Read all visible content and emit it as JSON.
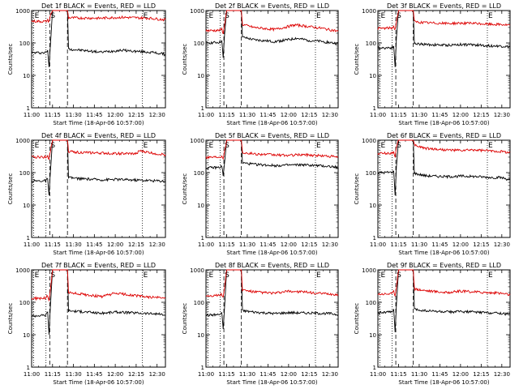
{
  "layout": "3x3 panel grid",
  "shared": {
    "x_tick_labels": [
      "11:00",
      "11:15",
      "11:30",
      "11:45",
      "12:00",
      "12:15",
      "12:30"
    ],
    "x_tick_minutes_after_1100": [
      0,
      15,
      30,
      45,
      60,
      75,
      90
    ],
    "xlim_minutes_after_1100": [
      0,
      96
    ],
    "xlabel": "Start Time (18-Apr-06 10:57:00)",
    "ylabel": "Counts/sec",
    "y_scale": "log",
    "ylim": [
      1,
      1000
    ],
    "y_tick_labels": [
      "1",
      "10",
      "100",
      "1000"
    ],
    "y_tick_values": [
      1,
      10,
      100,
      1000
    ],
    "series_colors": {
      "events": "#000000",
      "lld": "#dd0000"
    },
    "markers": [
      {
        "label": "E",
        "minutes_after_1100": 1.5,
        "style": "dotted"
      },
      {
        "label": "S",
        "minutes_after_1100": 13,
        "style": "dashed"
      },
      {
        "label": "",
        "minutes_after_1100": 10.3,
        "style": "dotted"
      },
      {
        "label": "",
        "minutes_after_1100": 25.7,
        "style": "dashed"
      },
      {
        "label": "E",
        "minutes_after_1100": 79.5,
        "style": "dotted"
      }
    ]
  },
  "chart_data": [
    {
      "type": "line",
      "title": "Det 1f BLACK = Events, RED = LLD",
      "series": [
        {
          "name": "Events",
          "x": [
            0,
            10,
            11.5,
            12.5,
            13.5,
            15,
            25.7,
            26.5,
            35,
            50,
            55,
            65,
            75,
            85,
            96
          ],
          "y": [
            50,
            50,
            60,
            18,
            90,
            1000,
            1000,
            65,
            60,
            52,
            55,
            60,
            55,
            52,
            45
          ]
        },
        {
          "name": "LLD",
          "x": [
            0,
            10,
            11.5,
            12.5,
            13.5,
            15,
            25.7,
            26.5,
            35,
            50,
            55,
            65,
            75,
            85,
            96
          ],
          "y": [
            470,
            460,
            500,
            460,
            700,
            1000,
            1000,
            600,
            590,
            580,
            600,
            620,
            600,
            580,
            520
          ]
        }
      ]
    },
    {
      "type": "line",
      "title": "Det 2f BLACK = Events, RED = LLD",
      "series": [
        {
          "name": "Events",
          "x": [
            0,
            10,
            11.5,
            12.5,
            13.5,
            15,
            25.7,
            26.5,
            35,
            50,
            62,
            65,
            75,
            85,
            96
          ],
          "y": [
            100,
            105,
            120,
            35,
            180,
            1000,
            1000,
            150,
            125,
            110,
            130,
            140,
            120,
            110,
            95
          ]
        },
        {
          "name": "LLD",
          "x": [
            0,
            10,
            11.5,
            12.5,
            13.5,
            15,
            25.7,
            26.5,
            35,
            50,
            62,
            65,
            75,
            85,
            96
          ],
          "y": [
            240,
            245,
            270,
            200,
            350,
            1000,
            1000,
            370,
            300,
            260,
            340,
            360,
            320,
            280,
            230
          ]
        }
      ]
    },
    {
      "type": "line",
      "title": "Det 3f BLACK = Events, RED = LLD",
      "series": [
        {
          "name": "Events",
          "x": [
            0,
            10,
            11.5,
            12.5,
            13.5,
            15,
            25.7,
            26.5,
            35,
            50,
            60,
            70,
            80,
            90,
            96
          ],
          "y": [
            70,
            72,
            80,
            18,
            150,
            1000,
            1000,
            95,
            90,
            85,
            90,
            88,
            82,
            80,
            75
          ]
        },
        {
          "name": "LLD",
          "x": [
            0,
            10,
            11.5,
            12.5,
            13.5,
            15,
            25.7,
            26.5,
            35,
            50,
            60,
            70,
            80,
            90,
            96
          ],
          "y": [
            280,
            290,
            320,
            250,
            480,
            1000,
            1000,
            450,
            420,
            400,
            410,
            400,
            380,
            370,
            350
          ]
        }
      ]
    },
    {
      "type": "line",
      "title": "Det 4f BLACK = Events, RED = LLD",
      "series": [
        {
          "name": "Events",
          "x": [
            0,
            10,
            11.5,
            12.5,
            13.5,
            15,
            25.7,
            26.5,
            35,
            50,
            60,
            70,
            80,
            90,
            96
          ],
          "y": [
            55,
            56,
            65,
            20,
            110,
            1000,
            1000,
            70,
            65,
            60,
            62,
            60,
            58,
            56,
            55
          ]
        },
        {
          "name": "LLD",
          "x": [
            0,
            10,
            11.5,
            12.5,
            13.5,
            15,
            25.7,
            26.5,
            35,
            50,
            60,
            75,
            77,
            90,
            96
          ],
          "y": [
            300,
            305,
            330,
            260,
            480,
            1000,
            1000,
            450,
            420,
            400,
            390,
            380,
            470,
            380,
            360
          ]
        }
      ]
    },
    {
      "type": "line",
      "title": "Det 5f BLACK = Events, RED = LLD",
      "series": [
        {
          "name": "Events",
          "x": [
            0,
            10,
            11.5,
            12.5,
            13.5,
            15,
            25.7,
            26.5,
            35,
            50,
            60,
            70,
            80,
            90,
            96
          ],
          "y": [
            140,
            145,
            160,
            80,
            200,
            1000,
            1000,
            200,
            180,
            165,
            170,
            175,
            165,
            155,
            145
          ]
        },
        {
          "name": "LLD",
          "x": [
            0,
            10,
            11.5,
            12.5,
            13.5,
            15,
            25.7,
            26.5,
            35,
            50,
            60,
            70,
            80,
            90,
            96
          ],
          "y": [
            300,
            310,
            330,
            290,
            450,
            1000,
            1000,
            420,
            380,
            350,
            340,
            360,
            340,
            320,
            300
          ]
        }
      ]
    },
    {
      "type": "line",
      "title": "Det 6f BLACK = Events, RED = LLD",
      "series": [
        {
          "name": "Events",
          "x": [
            0,
            10,
            11.5,
            12.5,
            13.5,
            15,
            25.7,
            26.5,
            35,
            50,
            60,
            70,
            80,
            90,
            96
          ],
          "y": [
            100,
            102,
            110,
            20,
            160,
            1000,
            1000,
            95,
            80,
            75,
            78,
            76,
            72,
            70,
            60
          ]
        },
        {
          "name": "LLD",
          "x": [
            0,
            10,
            11.5,
            12.5,
            13.5,
            15,
            25.7,
            26.5,
            35,
            50,
            60,
            70,
            80,
            90,
            96
          ],
          "y": [
            390,
            400,
            450,
            300,
            600,
            1000,
            1000,
            700,
            560,
            500,
            480,
            500,
            470,
            450,
            420
          ]
        }
      ]
    },
    {
      "type": "line",
      "title": "Det 7f BLACK = Events, RED = LLD",
      "series": [
        {
          "name": "Events",
          "x": [
            0,
            10,
            11.5,
            12.5,
            13.5,
            15,
            25.7,
            26.5,
            35,
            50,
            60,
            70,
            80,
            90,
            96
          ],
          "y": [
            38,
            40,
            50,
            10,
            80,
            1000,
            1000,
            55,
            52,
            46,
            50,
            48,
            46,
            44,
            40
          ]
        },
        {
          "name": "LLD",
          "x": [
            0,
            10,
            11.5,
            12.5,
            13.5,
            15,
            25.7,
            26.5,
            35,
            50,
            60,
            70,
            80,
            90,
            96
          ],
          "y": [
            130,
            135,
            160,
            120,
            250,
            1000,
            1000,
            200,
            180,
            150,
            190,
            170,
            150,
            140,
            135
          ]
        }
      ]
    },
    {
      "type": "line",
      "title": "Det 8f BLACK = Events, RED = LLD",
      "series": [
        {
          "name": "Events",
          "x": [
            0,
            10,
            11.5,
            12.5,
            13.5,
            15,
            25.7,
            26.5,
            35,
            50,
            60,
            70,
            80,
            90,
            96
          ],
          "y": [
            40,
            42,
            48,
            15,
            70,
            1000,
            1000,
            55,
            50,
            45,
            48,
            47,
            46,
            45,
            42
          ]
        },
        {
          "name": "LLD",
          "x": [
            0,
            10,
            11.5,
            12.5,
            13.5,
            15,
            25.7,
            26.5,
            35,
            50,
            60,
            70,
            80,
            90,
            96
          ],
          "y": [
            160,
            165,
            180,
            140,
            280,
            1000,
            1000,
            240,
            210,
            190,
            220,
            210,
            190,
            180,
            170
          ]
        }
      ]
    },
    {
      "type": "line",
      "title": "Det 9f BLACK = Events, RED = LLD",
      "series": [
        {
          "name": "Events",
          "x": [
            0,
            10,
            11.5,
            12.5,
            13.5,
            15,
            25.7,
            26.5,
            35,
            50,
            60,
            70,
            80,
            90,
            96
          ],
          "y": [
            48,
            50,
            60,
            12,
            90,
            1000,
            1000,
            60,
            55,
            50,
            52,
            50,
            48,
            46,
            42
          ]
        },
        {
          "name": "LLD",
          "x": [
            0,
            10,
            11.5,
            12.5,
            13.5,
            15,
            25.7,
            26.5,
            35,
            50,
            60,
            70,
            80,
            90,
            96
          ],
          "y": [
            180,
            185,
            210,
            160,
            300,
            1000,
            1000,
            260,
            230,
            200,
            220,
            210,
            200,
            190,
            170
          ]
        }
      ]
    }
  ]
}
